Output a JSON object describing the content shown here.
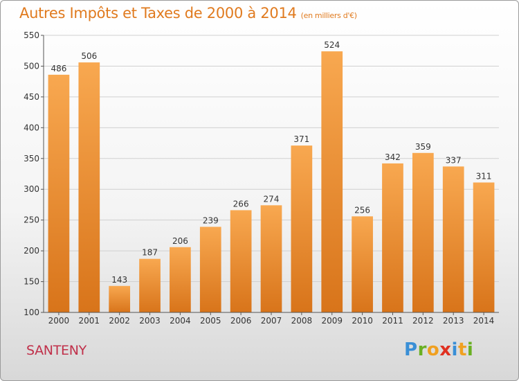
{
  "header": {
    "title": "Autres Impôts et Taxes de 2000 à 2014",
    "unit": "(en milliers d'€)"
  },
  "footer": {
    "city": "SANTENY",
    "brand_letters": [
      "P",
      "r",
      "o",
      "x",
      "i",
      "t",
      "i"
    ],
    "brand_colors": [
      "#3a8fd6",
      "#6ab023",
      "#f0a020",
      "#e03020",
      "#3a8fd6",
      "#f0a020",
      "#6ab023"
    ]
  },
  "colors": {
    "bar_light": "#f8a850",
    "bar_dark": "#d8741a",
    "grid": "#d0d0d0",
    "axis": "#555555",
    "title": "#e07a1e",
    "city": "#c0304a"
  },
  "chart_data": {
    "type": "bar",
    "title": "Autres Impôts et Taxes de 2000 à 2014",
    "subtitle": "(en milliers d'€)",
    "xlabel": "",
    "ylabel": "",
    "categories": [
      "2000",
      "2001",
      "2002",
      "2003",
      "2004",
      "2005",
      "2006",
      "2007",
      "2008",
      "2009",
      "2010",
      "2011",
      "2012",
      "2013",
      "2014"
    ],
    "values": [
      486,
      506,
      143,
      187,
      206,
      239,
      266,
      274,
      371,
      524,
      256,
      342,
      359,
      337,
      311
    ],
    "ylim": [
      100,
      550
    ],
    "yticks": [
      100,
      150,
      200,
      250,
      300,
      350,
      400,
      450,
      500,
      550
    ],
    "grid": true,
    "legend": "none"
  }
}
